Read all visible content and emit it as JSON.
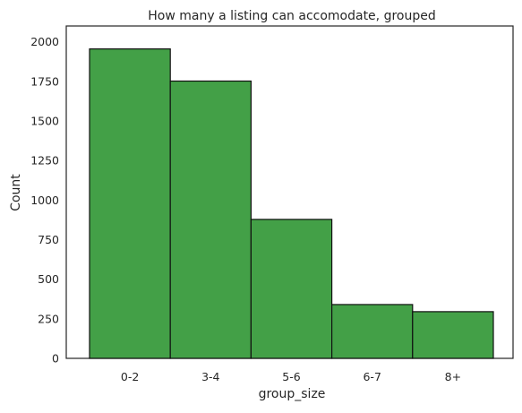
{
  "chart_data": {
    "type": "bar",
    "title": "How many a listing can accomodate, grouped",
    "xlabel": "group_size",
    "ylabel": "Count",
    "categories": [
      "0-2",
      "3-4",
      "5-6",
      "6-7",
      "8+"
    ],
    "values": [
      1955,
      1752,
      878,
      340,
      295
    ],
    "ylim": [
      0,
      2100
    ],
    "yticks": [
      0,
      250,
      500,
      750,
      1000,
      1250,
      1500,
      1750,
      2000
    ],
    "grid": false,
    "bar_color": "#43a047",
    "bar_edge_color": "#111111"
  }
}
